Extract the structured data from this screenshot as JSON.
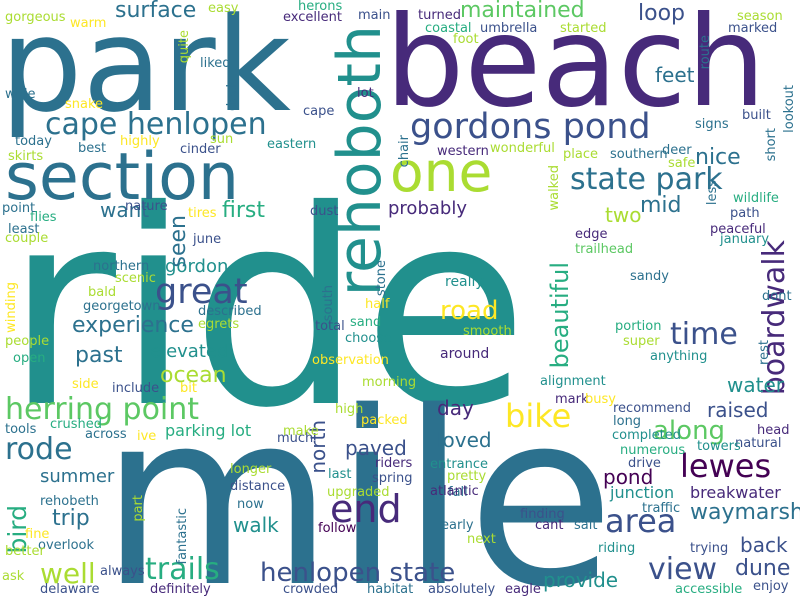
{
  "palette": {
    "c1": "#440154",
    "c2": "#472a7a",
    "c3": "#3b518b",
    "c4": "#2c718e",
    "c5": "#21908d",
    "c6": "#27ad81",
    "c7": "#5cc863",
    "c8": "#aadc32",
    "c9": "#fde725"
  },
  "words": [
    {
      "text": "ride"
    },
    {
      "text": "mile"
    },
    {
      "text": "park"
    },
    {
      "text": "beach"
    },
    {
      "text": "section"
    },
    {
      "text": "rehoboth"
    },
    {
      "text": "one"
    },
    {
      "text": "gordons pond"
    },
    {
      "text": "cape henlopen"
    },
    {
      "text": "state park"
    },
    {
      "text": "great"
    },
    {
      "text": "boardwalk"
    },
    {
      "text": "time"
    },
    {
      "text": "trails"
    },
    {
      "text": "henlopen state"
    },
    {
      "text": "view"
    },
    {
      "text": "area"
    },
    {
      "text": "lewes"
    },
    {
      "text": "herring point"
    },
    {
      "text": "bike"
    },
    {
      "text": "end"
    },
    {
      "text": "surface"
    },
    {
      "text": "maintained"
    },
    {
      "text": "loop"
    },
    {
      "text": "feet"
    },
    {
      "text": "nice"
    },
    {
      "text": "mid"
    },
    {
      "text": "two"
    },
    {
      "text": "first"
    },
    {
      "text": "want"
    },
    {
      "text": "probably"
    },
    {
      "text": "experience"
    },
    {
      "text": "past"
    },
    {
      "text": "ocean"
    },
    {
      "text": "elevated"
    },
    {
      "text": "gordon"
    },
    {
      "text": "seen"
    },
    {
      "text": "road"
    },
    {
      "text": "beautiful"
    },
    {
      "text": "rode"
    },
    {
      "text": "well"
    },
    {
      "text": "trip"
    },
    {
      "text": "walk"
    },
    {
      "text": "summer"
    },
    {
      "text": "bird"
    },
    {
      "text": "north"
    },
    {
      "text": "paved"
    },
    {
      "text": "loved"
    },
    {
      "text": "day"
    },
    {
      "text": "along"
    },
    {
      "text": "raised"
    },
    {
      "text": "pond"
    },
    {
      "text": "water"
    },
    {
      "text": "waymarsh"
    },
    {
      "text": "back"
    },
    {
      "text": "dune"
    },
    {
      "text": "provide"
    },
    {
      "text": "parking lot"
    },
    {
      "text": "breakwater"
    },
    {
      "text": "junction"
    },
    {
      "text": "really"
    },
    {
      "text": "around"
    },
    {
      "text": "sandy"
    },
    {
      "text": "path"
    },
    {
      "text": "peaceful"
    },
    {
      "text": "wildlife"
    },
    {
      "text": "southern"
    },
    {
      "text": "edge"
    },
    {
      "text": "trailhead"
    },
    {
      "text": "walked"
    },
    {
      "text": "place"
    },
    {
      "text": "wonderful"
    },
    {
      "text": "western"
    },
    {
      "text": "signs"
    },
    {
      "text": "built"
    },
    {
      "text": "lookout"
    },
    {
      "text": "short"
    },
    {
      "text": "season"
    },
    {
      "text": "marked"
    },
    {
      "text": "route"
    },
    {
      "text": "turned"
    },
    {
      "text": "started"
    },
    {
      "text": "umbrella"
    },
    {
      "text": "coastal"
    },
    {
      "text": "foot"
    },
    {
      "text": "main"
    },
    {
      "text": "lot"
    },
    {
      "text": "cape"
    },
    {
      "text": "excellent"
    },
    {
      "text": "herons"
    },
    {
      "text": "easy"
    },
    {
      "text": "warm"
    },
    {
      "text": "gorgeous"
    },
    {
      "text": "flies"
    },
    {
      "text": "quite"
    },
    {
      "text": "liked"
    },
    {
      "text": "deck"
    },
    {
      "text": "wide"
    },
    {
      "text": "snake"
    },
    {
      "text": "today"
    },
    {
      "text": "best"
    },
    {
      "text": "highly"
    },
    {
      "text": "cinder"
    },
    {
      "text": "sun"
    },
    {
      "text": "eastern"
    },
    {
      "text": "skirts"
    },
    {
      "text": "point"
    },
    {
      "text": "least"
    },
    {
      "text": "couple"
    },
    {
      "text": "nature"
    },
    {
      "text": "tires"
    },
    {
      "text": "dust"
    },
    {
      "text": "june"
    },
    {
      "text": "northern"
    },
    {
      "text": "scenic"
    },
    {
      "text": "bald"
    },
    {
      "text": "georgetown"
    },
    {
      "text": "described"
    },
    {
      "text": "egrets"
    },
    {
      "text": "winding"
    },
    {
      "text": "people"
    },
    {
      "text": "open"
    },
    {
      "text": "side"
    },
    {
      "text": "include"
    },
    {
      "text": "bit"
    },
    {
      "text": "tools"
    },
    {
      "text": "crushed"
    },
    {
      "text": "across"
    },
    {
      "text": "ive"
    },
    {
      "text": "much"
    },
    {
      "text": "make"
    },
    {
      "text": "total"
    },
    {
      "text": "south"
    },
    {
      "text": "half"
    },
    {
      "text": "sand"
    },
    {
      "text": "choose"
    },
    {
      "text": "stone"
    },
    {
      "text": "chair"
    },
    {
      "text": "observation"
    },
    {
      "text": "morning"
    },
    {
      "text": "high"
    },
    {
      "text": "packed"
    },
    {
      "text": "smooth"
    },
    {
      "text": "super"
    },
    {
      "text": "anything"
    },
    {
      "text": "portion"
    },
    {
      "text": "dont"
    },
    {
      "text": "january"
    },
    {
      "text": "less"
    },
    {
      "text": "rest"
    },
    {
      "text": "safe"
    },
    {
      "text": "deer"
    },
    {
      "text": "alignment"
    },
    {
      "text": "mark"
    },
    {
      "text": "busy"
    },
    {
      "text": "recommend"
    },
    {
      "text": "long"
    },
    {
      "text": "completed"
    },
    {
      "text": "numerous"
    },
    {
      "text": "head"
    },
    {
      "text": "natural"
    },
    {
      "text": "towers"
    },
    {
      "text": "drive"
    },
    {
      "text": "entrance"
    },
    {
      "text": "pretty"
    },
    {
      "text": "fall"
    },
    {
      "text": "atlantic"
    },
    {
      "text": "spring"
    },
    {
      "text": "riders"
    },
    {
      "text": "last"
    },
    {
      "text": "upgraded"
    },
    {
      "text": "longer"
    },
    {
      "text": "distance"
    },
    {
      "text": "now"
    },
    {
      "text": "follow"
    },
    {
      "text": "early"
    },
    {
      "text": "next"
    },
    {
      "text": "finding"
    },
    {
      "text": "cant"
    },
    {
      "text": "salt"
    },
    {
      "text": "traffic"
    },
    {
      "text": "riding"
    },
    {
      "text": "trying"
    },
    {
      "text": "rehobeth"
    },
    {
      "text": "fine"
    },
    {
      "text": "overlook"
    },
    {
      "text": "better"
    },
    {
      "text": "ask"
    },
    {
      "text": "delaware"
    },
    {
      "text": "part"
    },
    {
      "text": "fantastic"
    },
    {
      "text": "always"
    },
    {
      "text": "definitely"
    },
    {
      "text": "crowded"
    },
    {
      "text": "habitat"
    },
    {
      "text": "absolutely"
    },
    {
      "text": "eagle"
    },
    {
      "text": "accessible"
    },
    {
      "text": "enjoy"
    }
  ]
}
